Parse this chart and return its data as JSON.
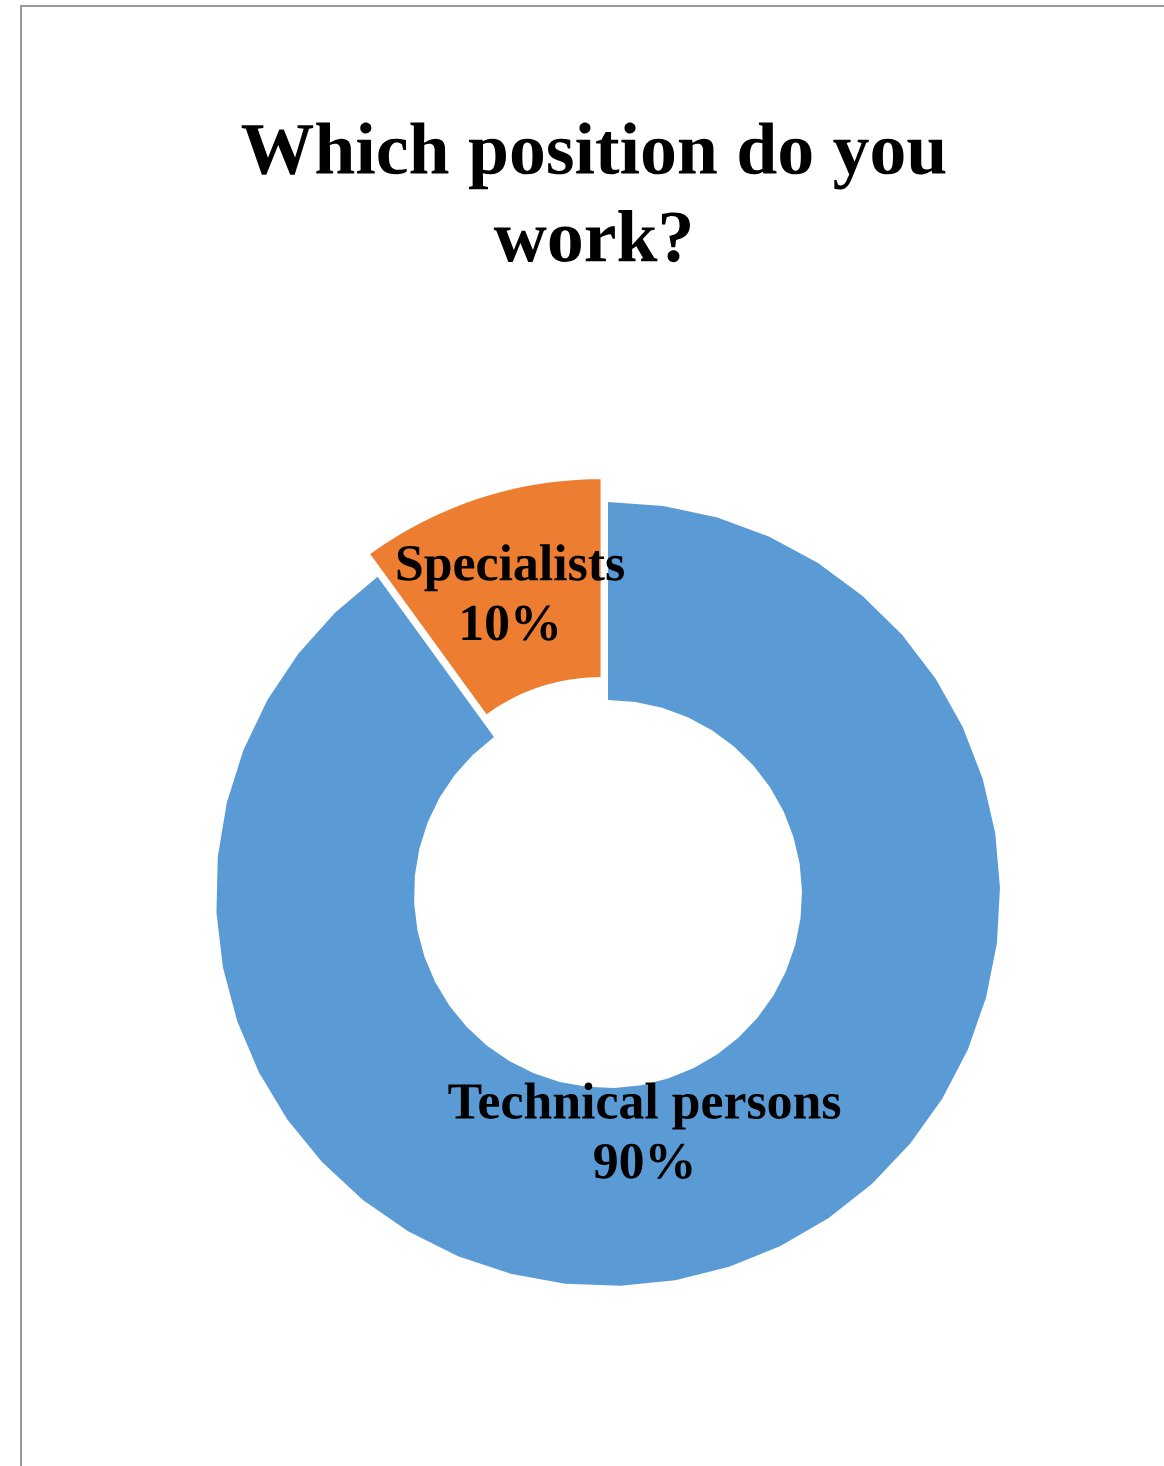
{
  "chart_data": {
    "type": "donut",
    "title": "Which position do you work?",
    "categories": [
      "Technical persons",
      "Specialists"
    ],
    "values": [
      90,
      10
    ],
    "colors": [
      "#5b9bd5",
      "#ed7d31"
    ],
    "value_labels": [
      "90%",
      "10%"
    ]
  }
}
